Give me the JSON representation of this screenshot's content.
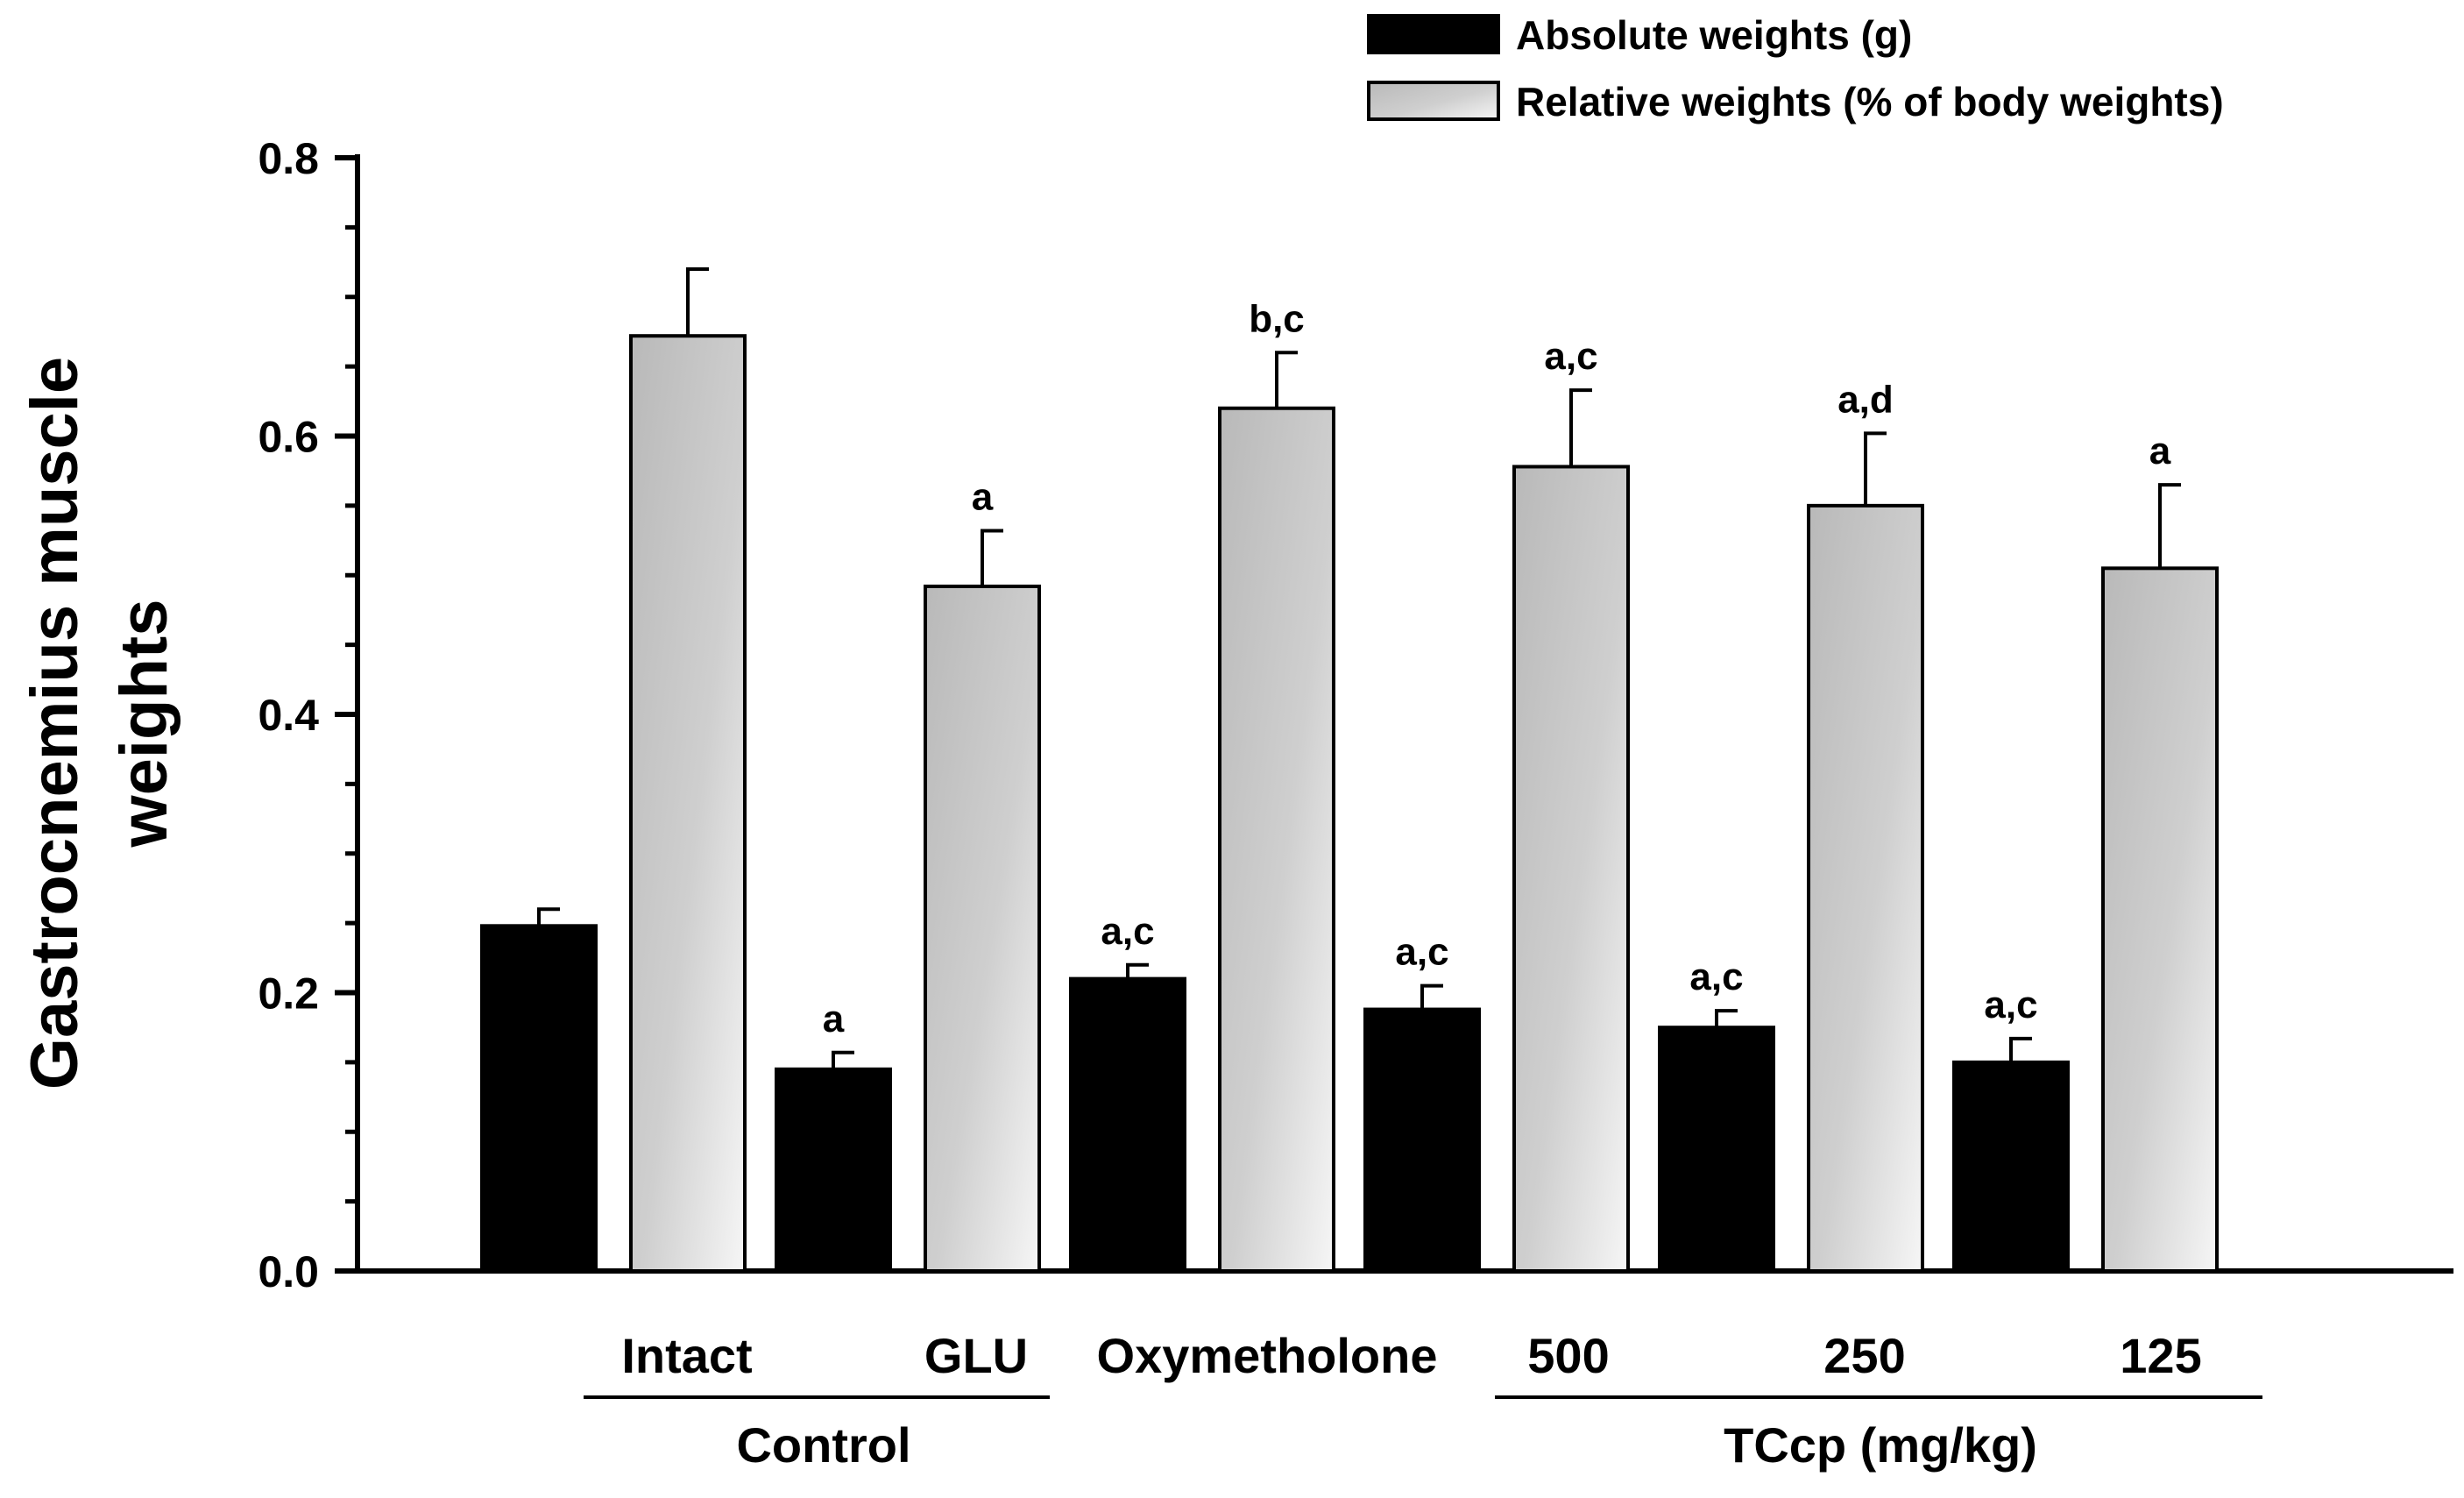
{
  "chart_data": {
    "type": "bar",
    "title": "",
    "xlabel": "",
    "ylabel_lines": [
      "Gastrocnemius muscle",
      "weights"
    ],
    "ylim": [
      0,
      0.8
    ],
    "yticks": [
      "0.0",
      "0.2",
      "0.4",
      "0.6",
      "0.8"
    ],
    "ytick_values": [
      0,
      0.2,
      0.4,
      0.6,
      0.8
    ],
    "minor_tick_step": 0.05,
    "grid": false,
    "legend_position": "top-right",
    "categories": [
      "Intact",
      "GLU",
      "Oxymetholone",
      "500",
      "250",
      "125"
    ],
    "category_groups": [
      {
        "label": "Control",
        "members": [
          "Intact",
          "GLU"
        ]
      },
      {
        "label": "TCcp (mg/kg)",
        "members": [
          "500",
          "250",
          "125"
        ]
      }
    ],
    "series": [
      {
        "name": "Absolute weights (g)",
        "color": "#000000",
        "values": [
          0.248,
          0.145,
          0.21,
          0.188,
          0.175,
          0.15
        ],
        "errors": [
          0.012,
          0.012,
          0.01,
          0.017,
          0.012,
          0.017
        ],
        "labels": [
          "",
          "a",
          "a,c",
          "a,c",
          "a,c",
          "a,c"
        ]
      },
      {
        "name": "Relative weights (% of body weights)",
        "color": "#c8c8c8",
        "values": [
          0.672,
          0.492,
          0.62,
          0.578,
          0.55,
          0.505
        ],
        "errors": [
          0.048,
          0.04,
          0.04,
          0.055,
          0.052,
          0.06
        ],
        "labels": [
          "",
          "a",
          "b,c",
          "a,c",
          "a,d",
          "a"
        ]
      }
    ]
  }
}
